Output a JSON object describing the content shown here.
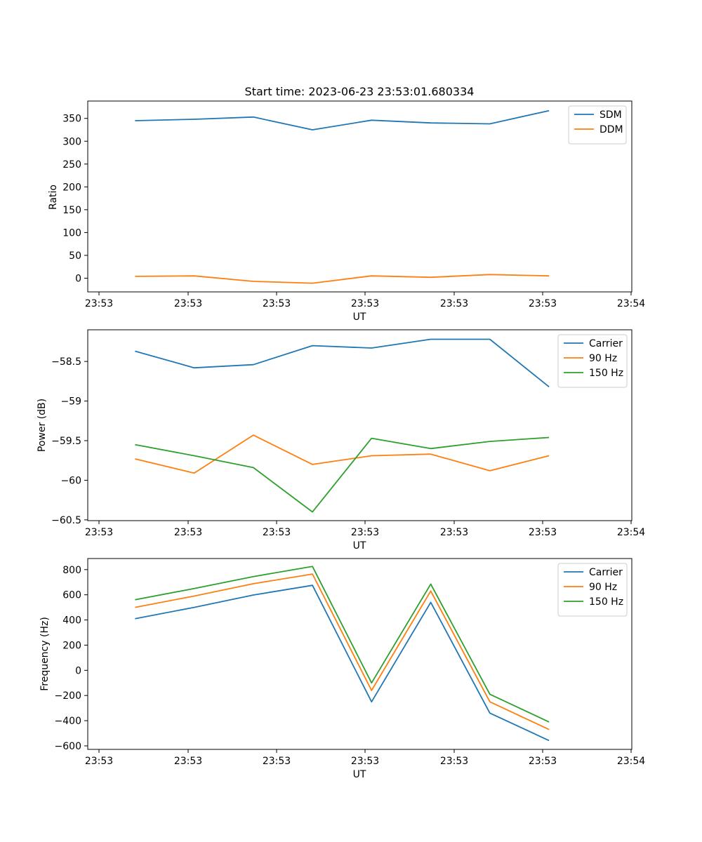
{
  "chart_data": [
    {
      "type": "line",
      "title": "Start time: 2023-06-23 23:53:01.680334",
      "xlabel": "UT",
      "ylabel": "Ratio",
      "x_tick_labels": [
        "23:53",
        "23:53",
        "23:53",
        "23:53",
        "23:53",
        "23:53",
        "23:53"
      ],
      "x_tick_last": "23:54",
      "y_ticks": [
        0,
        50,
        100,
        150,
        200,
        250,
        300,
        350
      ],
      "ylim": [
        -30,
        388
      ],
      "legend": "top-right",
      "grid": false,
      "x": [
        1,
        2,
        3,
        4,
        5,
        6,
        7,
        8
      ],
      "xlim": [
        0.2,
        9.4
      ],
      "series": [
        {
          "name": "SDM",
          "color": "#1f77b4",
          "values": [
            345,
            348,
            353,
            325,
            346,
            340,
            338,
            367
          ]
        },
        {
          "name": "DDM",
          "color": "#ff7f0e",
          "values": [
            4,
            5,
            -7,
            -11,
            5,
            2,
            8,
            5
          ]
        }
      ]
    },
    {
      "type": "line",
      "title": "",
      "xlabel": "UT",
      "ylabel": "Power (dB)",
      "x_tick_labels": [
        "23:53",
        "23:53",
        "23:53",
        "23:53",
        "23:53",
        "23:53",
        "23:53"
      ],
      "x_tick_last": "23:54",
      "y_ticks": [
        -60.5,
        -60.0,
        -59.5,
        -59.0,
        -58.5
      ],
      "ylim": [
        -60.51,
        -58.1
      ],
      "legend": "top-right",
      "grid": false,
      "x": [
        1,
        2,
        3,
        4,
        5,
        6,
        7,
        8
      ],
      "xlim": [
        0.2,
        9.4
      ],
      "series": [
        {
          "name": "Carrier",
          "color": "#1f77b4",
          "values": [
            -58.37,
            -58.58,
            -58.54,
            -58.3,
            -58.33,
            -58.22,
            -58.22,
            -58.82
          ]
        },
        {
          "name": "90 Hz",
          "color": "#ff7f0e",
          "values": [
            -59.73,
            -59.91,
            -59.43,
            -59.8,
            -59.69,
            -59.67,
            -59.88,
            -59.69
          ]
        },
        {
          "name": "150 Hz",
          "color": "#2ca02c",
          "values": [
            -59.55,
            -59.69,
            -59.84,
            -60.4,
            -59.47,
            -59.6,
            -59.51,
            -59.46
          ]
        }
      ]
    },
    {
      "type": "line",
      "title": "",
      "xlabel": "UT",
      "ylabel": "Frequency (Hz)",
      "x_tick_labels": [
        "23:53",
        "23:53",
        "23:53",
        "23:53",
        "23:53",
        "23:53",
        "23:53"
      ],
      "x_tick_last": "23:54",
      "y_ticks": [
        -600,
        -400,
        -200,
        0,
        200,
        400,
        600,
        800
      ],
      "ylim": [
        -628,
        888
      ],
      "legend": "top-right",
      "grid": false,
      "x": [
        1,
        2,
        3,
        4,
        5,
        6,
        7,
        8
      ],
      "xlim": [
        0.2,
        9.4
      ],
      "series": [
        {
          "name": "Carrier",
          "color": "#1f77b4",
          "values": [
            410,
            500,
            598,
            675,
            -250,
            540,
            -340,
            -558
          ]
        },
        {
          "name": "90 Hz",
          "color": "#ff7f0e",
          "values": [
            500,
            590,
            688,
            765,
            -160,
            630,
            -250,
            -470
          ]
        },
        {
          "name": "150 Hz",
          "color": "#2ca02c",
          "values": [
            560,
            650,
            745,
            825,
            -100,
            685,
            -190,
            -410
          ]
        }
      ]
    }
  ]
}
